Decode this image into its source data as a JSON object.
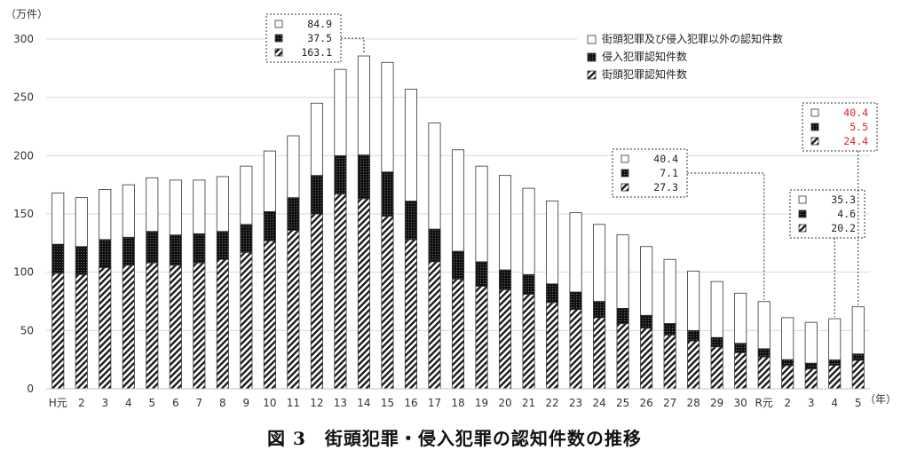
{
  "caption": "図 3　街頭犯罪・侵入犯罪の認知件数の推移",
  "chart_data": {
    "type": "bar",
    "stacked": true,
    "y_unit_label": "（万件）",
    "x_unit_label": "（年）",
    "ylim": [
      0,
      300
    ],
    "y_ticks": [
      0,
      50,
      100,
      150,
      200,
      250,
      300
    ],
    "grid": true,
    "legend_position": "top-right",
    "categories": [
      "H元",
      "2",
      "3",
      "4",
      "5",
      "6",
      "7",
      "8",
      "9",
      "10",
      "11",
      "12",
      "13",
      "14",
      "15",
      "16",
      "17",
      "18",
      "19",
      "20",
      "21",
      "22",
      "23",
      "24",
      "25",
      "26",
      "27",
      "28",
      "29",
      "30",
      "R元",
      "2",
      "3",
      "4",
      "5"
    ],
    "series": [
      {
        "name": "街頭犯罪認知件数",
        "pattern": "hatch",
        "values": [
          99,
          98,
          104,
          106,
          108,
          106,
          108,
          111,
          117,
          127,
          136,
          150,
          167,
          163.1,
          148,
          128,
          109,
          94,
          88,
          85,
          81,
          74,
          68,
          61,
          56,
          52,
          46,
          41,
          36,
          31,
          27.3,
          20,
          17,
          20.2,
          24.4
        ]
      },
      {
        "name": "侵入犯罪認知件数",
        "pattern": "dots",
        "values": [
          25,
          24,
          24,
          24,
          27,
          26,
          25,
          24,
          24,
          25,
          28,
          33,
          33,
          37.5,
          38,
          33,
          28,
          24,
          21,
          17,
          17,
          16,
          15,
          14,
          13,
          11,
          10,
          9,
          8,
          8,
          7.1,
          5,
          5,
          4.6,
          5.5
        ]
      },
      {
        "name": "街頭犯罪及び侵入犯罪以外の認知件数",
        "pattern": "white",
        "values": [
          44,
          42,
          43,
          45,
          46,
          47,
          46,
          47,
          50,
          52,
          53,
          62,
          74,
          84.9,
          94,
          96,
          91,
          87,
          82,
          81,
          74,
          71,
          68,
          66,
          63,
          59,
          55,
          51,
          48,
          43,
          40.4,
          36,
          35,
          35.3,
          40.4
        ]
      }
    ],
    "callouts": [
      {
        "category_index": 13,
        "values": [
          "84.9",
          "37.5",
          "163.1"
        ],
        "color": "#222222"
      },
      {
        "category_index": 30,
        "values": [
          "40.4",
          "7.1",
          "27.3"
        ],
        "color": "#222222"
      },
      {
        "category_index": 33,
        "values": [
          "35.3",
          "4.6",
          "20.2"
        ],
        "color": "#222222"
      },
      {
        "category_index": 34,
        "values": [
          "40.4",
          "5.5",
          "24.4"
        ],
        "color": "#e02020"
      }
    ]
  }
}
